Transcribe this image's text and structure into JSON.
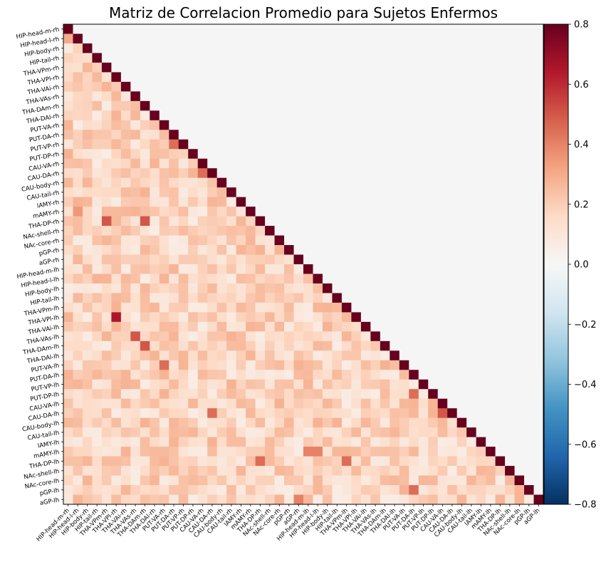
{
  "chart_data": {
    "type": "heatmap",
    "title": "Matriz de Correlacion Promedio para Sujetos Enfermos",
    "labels": [
      "HIP-head-m-rh",
      "HIP-head-l-rh",
      "HIP-body-rh",
      "HIP-tail-rh",
      "THA-VPm-rh",
      "THA-VPl-rh",
      "THA-VAi-rh",
      "THA-VAs-rh",
      "THA-DAm-rh",
      "THA-DAl-rh",
      "PUT-VA-rh",
      "PUT-DA-rh",
      "PUT-VP-rh",
      "PUT-DP-rh",
      "CAU-VA-rh",
      "CAU-DA-rh",
      "CAU-body-rh",
      "CAU-tail-rh",
      "lAMY-rh",
      "mAMY-rh",
      "THA-DP-rh",
      "NAc-shell-rh",
      "NAc-core-rh",
      "pGP-rh",
      "aGP-rh",
      "HIP-head-m-lh",
      "HIP-head-l-lh",
      "HIP-body-lh",
      "HIP-tail-lh",
      "THA-VPm-lh",
      "THA-VPl-lh",
      "THA-VAi-lh",
      "THA-VAs-lh",
      "THA-DAm-lh",
      "THA-DAl-lh",
      "PUT-VA-lh",
      "PUT-DA-lh",
      "PUT-VP-lh",
      "PUT-DP-lh",
      "CAU-VA-lh",
      "CAU-DA-lh",
      "CAU-body-lh",
      "CAU-tail-lh",
      "lAMY-lh",
      "mAMY-lh",
      "THA-DP-lh",
      "NAc-shell-lh",
      "NAc-core-lh",
      "pGP-lh",
      "aGP-lh"
    ],
    "mask": "upper triangle (j > i) masked",
    "mask_color": "#f5f5f5",
    "colormap": "RdBu_r",
    "vmin": -0.8,
    "vmax": 0.8,
    "colorbar_ticks": [
      "0.8",
      "0.6",
      "0.4",
      "0.2",
      "0.0",
      "−0.2",
      "−0.4",
      "−0.6",
      "−0.8"
    ],
    "highlights": [
      {
        "row": "HIP-head-l-rh",
        "col": "HIP-head-m-rh",
        "value": 0.3
      },
      {
        "row": "mAMY-rh",
        "col": "HIP-head-l-rh",
        "value": 0.35
      },
      {
        "row": "THA-DP-rh",
        "col": "THA-VPm-rh",
        "value": 0.5
      },
      {
        "row": "THA-DP-rh",
        "col": "THA-DAm-rh",
        "value": 0.5
      },
      {
        "row": "PUT-VP-rh",
        "col": "PUT-DA-rh",
        "value": 0.45
      },
      {
        "row": "CAU-DA-rh",
        "col": "CAU-VA-rh",
        "value": 0.45
      },
      {
        "row": "THA-VPl-lh",
        "col": "THA-VPl-rh",
        "value": 0.65
      },
      {
        "row": "THA-VAs-lh",
        "col": "THA-VAs-rh",
        "value": 0.5
      },
      {
        "row": "THA-DAm-lh",
        "col": "THA-DAm-rh",
        "value": 0.5
      },
      {
        "row": "PUT-VA-lh",
        "col": "PUT-VA-rh",
        "value": 0.45
      },
      {
        "row": "CAU-DA-lh",
        "col": "CAU-DA-rh",
        "value": 0.45
      },
      {
        "row": "CAU-DA-lh",
        "col": "CAU-VA-lh",
        "value": 0.5
      },
      {
        "row": "PUT-DP-lh",
        "col": "PUT-DA-lh",
        "value": 0.45
      },
      {
        "row": "mAMY-lh",
        "col": "HIP-head-m-lh",
        "value": 0.4
      },
      {
        "row": "mAMY-lh",
        "col": "HIP-head-l-lh",
        "value": 0.4
      },
      {
        "row": "THA-DP-lh",
        "col": "THA-VPm-lh",
        "value": 0.45
      },
      {
        "row": "THA-DP-lh",
        "col": "THA-DP-rh",
        "value": 0.45
      },
      {
        "row": "pGP-lh",
        "col": "PUT-DA-lh",
        "value": 0.45
      },
      {
        "row": "aGP-lh",
        "col": "aGP-rh",
        "value": 0.4
      }
    ]
  }
}
